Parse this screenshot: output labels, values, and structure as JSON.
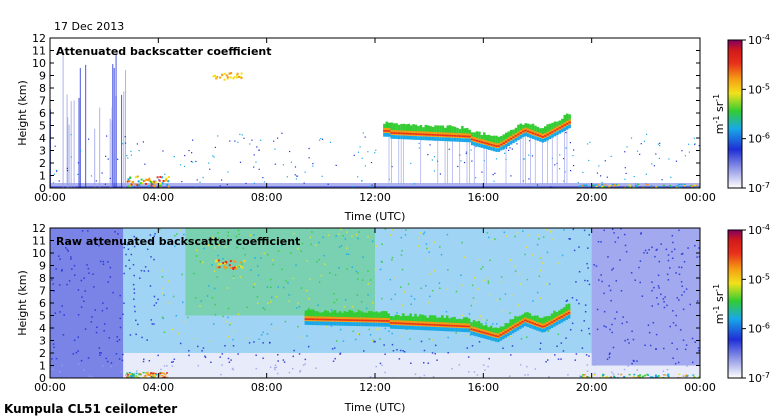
{
  "date_label": "17 Dec 2013",
  "footer_label": "Kumpula CL51 ceilometer",
  "colorscale": [
    "#ffffff",
    "#9aa0e8",
    "#1f2fd6",
    "#18a8e8",
    "#33cc33",
    "#f2e21a",
    "#f59a14",
    "#e8321a",
    "#d21a1a",
    "#800060"
  ],
  "chart_data": [
    {
      "type": "heatmap",
      "title": "Attenuated backscatter coefficient",
      "xlabel": "Time (UTC)",
      "ylabel": "Height (km)",
      "xlim": [
        "00:00",
        "00:00"
      ],
      "ylim": [
        0,
        12
      ],
      "x_ticks": [
        "00:00",
        "04:00",
        "08:00",
        "12:00",
        "16:00",
        "20:00",
        "00:00"
      ],
      "y_ticks": [
        "0",
        "1",
        "2",
        "3",
        "4",
        "5",
        "6",
        "7",
        "8",
        "9",
        "10",
        "11",
        "12"
      ],
      "colorbar": {
        "label": "m-1 sr-1",
        "ticks": [
          "10-7",
          "10-6",
          "10-5",
          "10-4"
        ],
        "scale": "log"
      },
      "features": [
        {
          "name": "cloud layer",
          "time_start_h": 12.3,
          "time_end_h": 19.2,
          "base_height_km": 3.4,
          "top_height_km": 5.3
        },
        {
          "name": "upper patch",
          "time_start_h": 6.0,
          "time_end_h": 7.1,
          "height_km": 8.9
        },
        {
          "name": "precipitation streaks",
          "time_start_h": 0.0,
          "time_end_h": 2.8,
          "height_km": [
            0,
            12
          ]
        },
        {
          "name": "surface layer",
          "time_start_h": 0.0,
          "time_end_h": 24.0,
          "height_km": [
            0,
            0.4
          ]
        }
      ]
    },
    {
      "type": "heatmap",
      "title": "Raw attenuated backscatter coefficient",
      "xlabel": "Time (UTC)",
      "ylabel": "Height (km)",
      "xlim": [
        "00:00",
        "00:00"
      ],
      "ylim": [
        0,
        12
      ],
      "x_ticks": [
        "00:00",
        "04:00",
        "08:00",
        "12:00",
        "16:00",
        "20:00",
        "00:00"
      ],
      "y_ticks": [
        "0",
        "1",
        "2",
        "3",
        "4",
        "5",
        "6",
        "7",
        "8",
        "9",
        "10",
        "11",
        "12"
      ],
      "colorbar": {
        "label": "m-1 sr-1",
        "ticks": [
          "10-7",
          "10-6",
          "10-5",
          "10-4"
        ],
        "scale": "log"
      },
      "features": [
        {
          "name": "cloud layer",
          "time_start_h": 9.4,
          "time_end_h": 19.2,
          "base_height_km": 2.8,
          "top_height_km": 5.8
        },
        {
          "name": "noise",
          "time_start_h": 2.7,
          "time_end_h": 20.0,
          "height_km": [
            3,
            12
          ]
        }
      ]
    }
  ]
}
